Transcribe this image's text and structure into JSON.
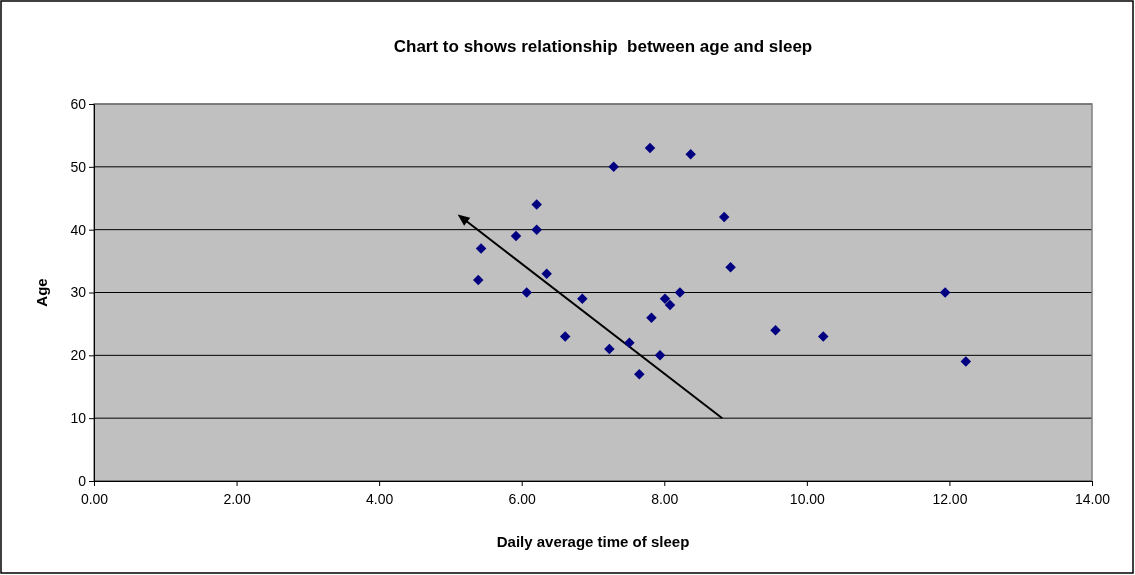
{
  "chart_data": {
    "type": "scatter",
    "title": "Chart to shows relationship  between age and sleep",
    "xlabel": "Daily average time of sleep",
    "ylabel": "Age",
    "x": [
      5.39,
      5.43,
      5.92,
      6.21,
      6.21,
      6.07,
      6.35,
      6.61,
      6.85,
      7.23,
      7.29,
      7.51,
      7.65,
      7.8,
      7.82,
      7.94,
      8.01,
      8.08,
      8.22,
      8.37,
      8.84,
      8.93,
      9.56,
      10.23,
      11.94,
      12.23
    ],
    "series": [
      {
        "color": "#000080",
        "values": [
          32,
          37,
          39,
          40,
          44,
          30,
          33,
          23,
          29,
          21,
          50,
          22,
          17,
          53,
          26,
          20,
          29,
          28,
          30,
          52,
          42,
          34,
          24,
          23,
          30,
          19
        ]
      }
    ],
    "xlim": [
      0,
      14
    ],
    "xticks": [
      {
        "value": 0,
        "label": "0.00"
      },
      {
        "value": 2,
        "label": "2.00"
      },
      {
        "value": 4,
        "label": "4.00"
      },
      {
        "value": 6,
        "label": "6.00"
      },
      {
        "value": 8,
        "label": "8.00"
      },
      {
        "value": 10,
        "label": "10.00"
      },
      {
        "value": 12,
        "label": "12.00"
      },
      {
        "value": 14,
        "label": "14.00"
      }
    ],
    "ylim": [
      0,
      60
    ],
    "yticks": [
      0,
      10,
      20,
      30,
      40,
      50,
      60
    ],
    "grid": "y",
    "marker": "diamond"
  }
}
